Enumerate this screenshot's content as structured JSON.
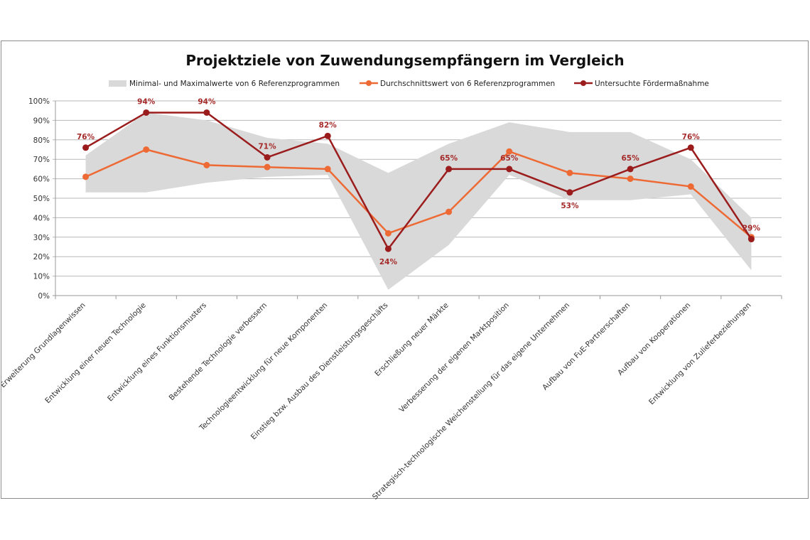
{
  "chart_data": {
    "type": "line",
    "title": "Projektziele von Zuwendungsempfängern im Vergleich",
    "xlabel": "",
    "ylabel": "",
    "ylim": [
      0,
      100
    ],
    "yticks": [
      "0%",
      "10%",
      "20%",
      "30%",
      "40%",
      "50%",
      "60%",
      "70%",
      "80%",
      "90%",
      "100%"
    ],
    "grid": true,
    "legend_position": "top",
    "categories": [
      "Erweiterung Grundlagenwissen",
      "Entwicklung einer neuen Technologie",
      "Entwicklung eines Funktionsmusters",
      "Bestehende Technologie verbessern",
      "Technologieentwicklung für neue Komponenten",
      "Einstieg bzw. Ausbau des Dienstleistungsgeschäfts",
      "Erschließung neuer Märkte",
      "Verbesserung der eigenen Marktposition",
      "Strategisch-technologische Weichenstellung für das eigene Unternehmen",
      "Aufbau von FuE-Partnerschaften",
      "Aufbau von Kooperationen",
      "Entwicklung von Zulieferbeziehungen"
    ],
    "band": {
      "name": "Minimal- und Maximalwerte von 6 Referenzprogrammen",
      "color": "#d9d9d9",
      "min": [
        53,
        53,
        58,
        61,
        62,
        3,
        26,
        62,
        49,
        49,
        52,
        13
      ],
      "max": [
        72,
        94,
        90,
        81,
        78,
        63,
        78,
        89,
        84,
        84,
        70,
        40
      ]
    },
    "series": [
      {
        "name": "Durchschnittswert von 6 Referenzprogrammen",
        "color": "#ee6a35",
        "values": [
          61,
          75,
          67,
          66,
          65,
          32,
          43,
          74,
          63,
          60,
          56,
          30
        ]
      },
      {
        "name": "Untersuchte Fördermaßnahme",
        "color": "#9b1c1c",
        "values": [
          76,
          94,
          94,
          71,
          82,
          24,
          65,
          65,
          53,
          65,
          76,
          29
        ],
        "data_labels": [
          "76%",
          "94%",
          "94%",
          "71%",
          "82%",
          "24%",
          "65%",
          "65%",
          "53%",
          "65%",
          "76%",
          "29%"
        ]
      }
    ]
  }
}
